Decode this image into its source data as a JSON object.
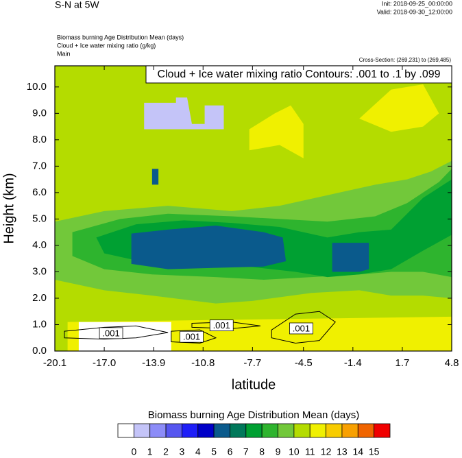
{
  "chart_data": {
    "type": "contour",
    "title": "S-N at 5W",
    "init": "Init: 2018-09-25_00:00:00",
    "valid": "Valid: 2018-09-30_12:00:00",
    "fields": [
      "Biomass burning Age Distribution Mean   (days)",
      "Cloud + Ice water mixing ratio   (g/kg)",
      "Main"
    ],
    "cross_section": "Cross-Section: (269,231) to (269,485)",
    "contour_info": "Cloud + Ice water mixing ratio Contours: .001 to .1 by .099",
    "xlabel": "latitude",
    "ylabel": "Height (km)",
    "xlim": [
      -20.1,
      4.8
    ],
    "xticks": [
      -20.1,
      {
        "value": -17,
        "label": "-17.0"
      },
      -13.9,
      -10.8,
      -7.7,
      -4.5,
      -1.4,
      1.7,
      4.8
    ],
    "ylim": [
      0,
      10.8
    ],
    "yticks": [
      {
        "value": 0,
        "label": "0.0"
      },
      {
        "value": 1,
        "label": "1.0"
      },
      {
        "value": 2,
        "label": "2.0"
      },
      {
        "value": 3,
        "label": "3.0"
      },
      {
        "value": 4,
        "label": "4.0"
      },
      {
        "value": 5,
        "label": "5.0"
      },
      {
        "value": 6,
        "label": "6.0"
      },
      {
        "value": 7,
        "label": "7.0"
      },
      {
        "value": 8,
        "label": "8.0"
      },
      {
        "value": 9,
        "label": "9.0"
      },
      {
        "value": 10,
        "label": "10.0"
      }
    ],
    "colorbar": {
      "title": "Biomass burning Age Distribution Mean  (days)",
      "levels": [
        0,
        1,
        2,
        3,
        4,
        5,
        6,
        7,
        8,
        9,
        10,
        11,
        12,
        13,
        14,
        15
      ],
      "colors": [
        "#ffffff",
        "#c4c4f8",
        "#8c8cf8",
        "#5656f0",
        "#1e1ef8",
        "#0000c8",
        "#0a5a8c",
        "#00785a",
        "#00a032",
        "#2eb42e",
        "#72c83a",
        "#b4dc00",
        "#f0f000",
        "#f8cc00",
        "#f8a000",
        "#f06400",
        "#f00000"
      ]
    },
    "regions": [
      {
        "value": 10.5,
        "lat": [
          -20.1,
          4.8,
          4.8,
          -20.1
        ],
        "height": [
          0,
          0,
          10.8,
          10.8
        ]
      },
      {
        "value": 11.5,
        "lat": [
          -7.9,
          -6.3,
          -5.3,
          -4.5,
          -4.5,
          -6,
          -7.9
        ],
        "height": [
          8.4,
          9.0,
          9.3,
          8.6,
          7.3,
          7.8,
          7.6
        ]
      },
      {
        "value": 11.5,
        "lat": [
          -1,
          1,
          3,
          4,
          3,
          1
        ],
        "height": [
          8.8,
          9.9,
          10.1,
          9,
          8.5,
          8.3
        ]
      },
      {
        "value": 9.5,
        "lat": [
          -20.1,
          -17,
          -13,
          -9,
          -6,
          -3,
          0,
          2,
          3.5,
          4.8,
          4.8,
          3,
          1,
          -1,
          -4,
          -7.7,
          -10,
          -14,
          -17,
          -20.1
        ],
        "height": [
          4.9,
          5.3,
          5.5,
          5.3,
          5.5,
          5.9,
          6.3,
          6.5,
          6.8,
          7.2,
          2.0,
          2.1,
          2.1,
          2.3,
          2.2,
          1.9,
          1.8,
          2.1,
          2.3,
          2.7
        ]
      },
      {
        "value": 8.5,
        "lat": [
          -19,
          -16,
          -13,
          -9,
          -6,
          -3,
          0,
          2,
          4,
          4.8,
          4.8,
          3,
          1,
          -1,
          -4,
          -7,
          -10,
          -14,
          -17,
          -19
        ],
        "height": [
          4.5,
          5.0,
          5.2,
          5.1,
          5.0,
          4.9,
          5.1,
          5.6,
          6.4,
          6.9,
          2.8,
          3.0,
          3.0,
          2.9,
          2.8,
          2.7,
          2.8,
          2.9,
          3.1,
          3.6
        ]
      },
      {
        "value": 7.5,
        "lat": [
          -17.5,
          -15,
          -12,
          -9,
          -6,
          -3,
          -1,
          1,
          3,
          4.8,
          4.8,
          3,
          1,
          -1,
          -3,
          -5,
          -8,
          -11,
          -14,
          -17
        ],
        "height": [
          4.3,
          4.8,
          4.95,
          4.85,
          4.7,
          4.3,
          4.5,
          4.6,
          5.8,
          6.5,
          4.4,
          3.8,
          3.1,
          2.9,
          2.8,
          3.0,
          3.2,
          3.2,
          3.3,
          3.7
        ]
      },
      {
        "value": 5.5,
        "lat": [
          -15.3,
          -13,
          -10,
          -7,
          -5.8,
          -5.6,
          -7,
          -10,
          -13,
          -15.3
        ],
        "height": [
          4.45,
          4.6,
          4.75,
          4.5,
          4.3,
          3.4,
          3.2,
          3.15,
          3.1,
          3.3
        ]
      },
      {
        "value": 5.5,
        "lat": [
          -2.7,
          -0.4,
          -0.4,
          -1,
          -2.7
        ],
        "height": [
          4.1,
          4.1,
          3.1,
          3.0,
          3.0
        ]
      },
      {
        "value": 5.5,
        "lat": [
          -14,
          -13.6,
          -13.6,
          -14
        ],
        "height": [
          6.3,
          6.3,
          6.9,
          6.9
        ]
      },
      {
        "value": 11.5,
        "lat": [
          -19.3,
          4.8,
          4.8,
          -19.3
        ],
        "height": [
          0,
          0,
          1.3,
          1.1
        ]
      },
      {
        "value": -0.5,
        "lat": [
          -18.6,
          -12.8,
          -12.8,
          -18.6
        ],
        "height": [
          0,
          0,
          1.1,
          1.1
        ]
      },
      {
        "value": 0.5,
        "lat": [
          -14.5,
          -12.5,
          -12.5,
          -11.8,
          -11.5,
          -10.7,
          -10.7,
          -9.5,
          -9.5,
          -14.5
        ],
        "height": [
          9.4,
          9.4,
          9.6,
          9.6,
          8.6,
          8.6,
          9.3,
          9.3,
          8.4,
          8.4
        ]
      }
    ],
    "contours": [
      {
        "value": 0.001,
        "label": ".001",
        "lat": [
          -19.5,
          -17,
          -15,
          -13,
          -15,
          -17,
          -19.5
        ],
        "height": [
          0.75,
          0.9,
          0.95,
          0.7,
          0.5,
          0.45,
          0.5
        ]
      },
      {
        "value": 0.001,
        "label": ".001",
        "lat": [
          -12.8,
          -11,
          -10,
          -11,
          -12.8
        ],
        "height": [
          0.75,
          0.8,
          0.5,
          0.3,
          0.35
        ]
      },
      {
        "value": 0.001,
        "label": ".001",
        "lat": [
          -11.5,
          -9,
          -7.2,
          -9,
          -11.5
        ],
        "height": [
          1.05,
          1.1,
          0.95,
          0.85,
          0.9
        ]
      },
      {
        "value": 0.001,
        "label": ".001",
        "lat": [
          -6.5,
          -5,
          -3.5,
          -2.5,
          -3.5,
          -5,
          -6.5
        ],
        "height": [
          0.8,
          1.4,
          1.5,
          1.1,
          0.4,
          0.3,
          0.5
        ]
      }
    ]
  }
}
